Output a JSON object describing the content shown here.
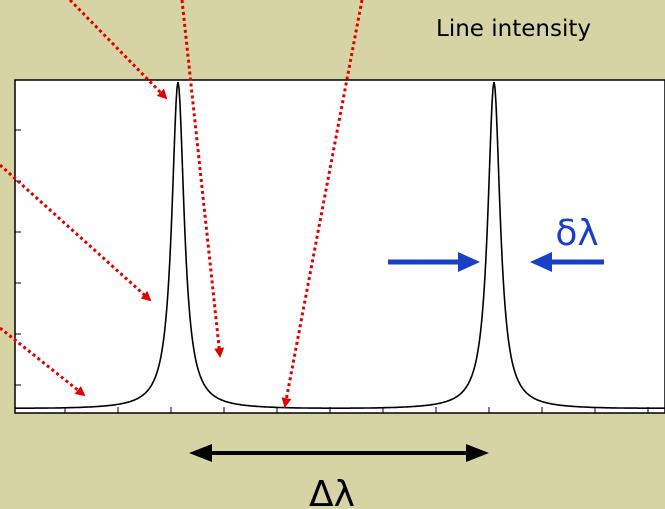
{
  "labels": {
    "title": "Line intensity",
    "linewidth": "δλ",
    "separation": "Δλ"
  },
  "colors": {
    "background": "#d6d4a4",
    "plot_bg": "#ffffff",
    "curve": "#000000",
    "pointer_arrows": "#e00000",
    "linewidth_arrows": "#1a40c8",
    "separation_arrow": "#000000"
  }
}
